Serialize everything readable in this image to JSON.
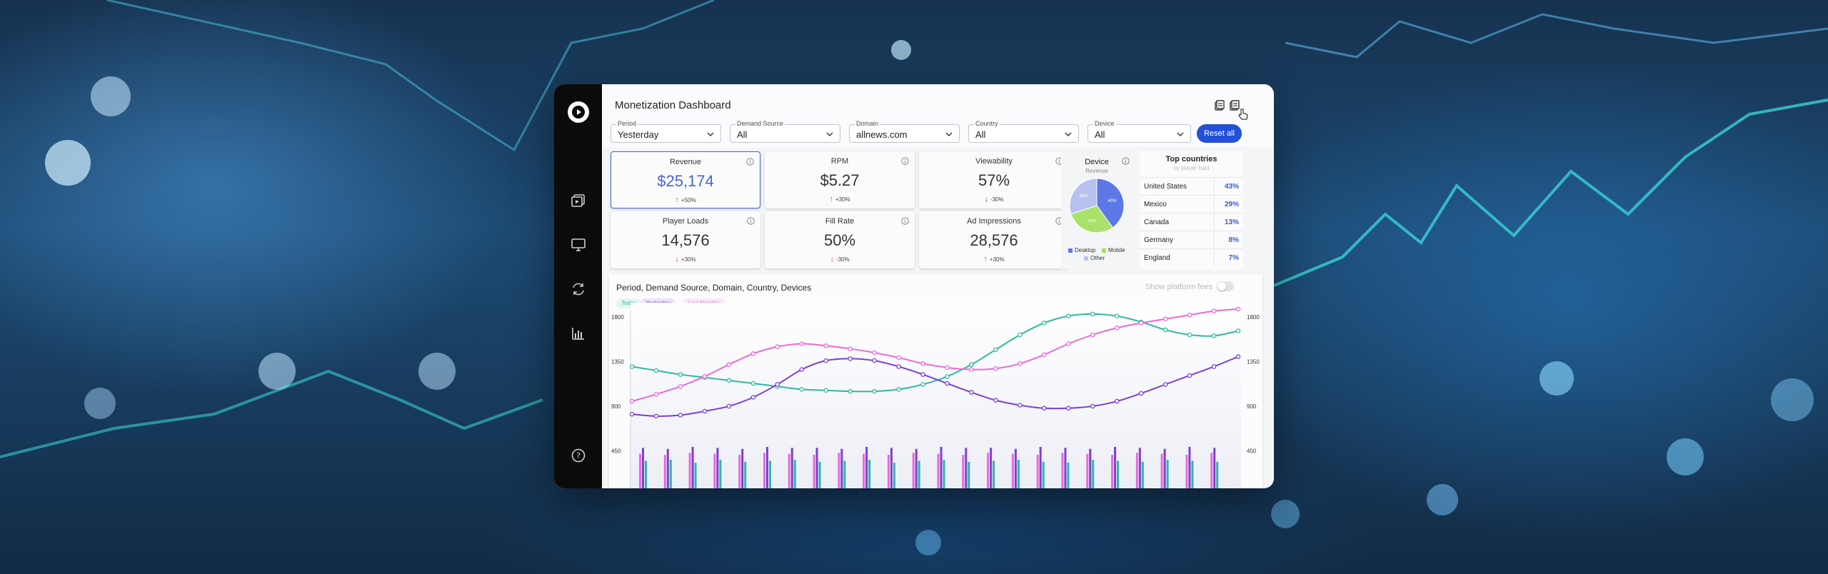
{
  "app": {
    "title": "Monetization Dashboard",
    "accent": "#2250d6"
  },
  "sidebar": {
    "items": [
      {
        "icon": "video-library-icon"
      },
      {
        "icon": "monitor-icon"
      },
      {
        "icon": "refresh-icon"
      },
      {
        "icon": "bar-chart-icon"
      },
      {
        "icon": "help-icon"
      }
    ]
  },
  "toolbar": {
    "icons": [
      "export-icon",
      "copy-icon"
    ]
  },
  "filters": {
    "period": {
      "label": "Period",
      "value": "Yesterday"
    },
    "demand_source": {
      "label": "Demand Source",
      "value": "All"
    },
    "domain": {
      "label": "Domain",
      "value": "allnews.com"
    },
    "country": {
      "label": "Country",
      "value": "All"
    },
    "device": {
      "label": "Device",
      "value": "All"
    },
    "reset_label": "Reset all"
  },
  "kpis": [
    {
      "title": "Revenue",
      "value": "$25,174",
      "change": "+50%",
      "direction": "up"
    },
    {
      "title": "RPM",
      "value": "$5.27",
      "change": "+30%",
      "direction": "up"
    },
    {
      "title": "Viewability",
      "value": "57%",
      "change": "-30%",
      "direction": "down"
    },
    {
      "title": "Player Loads",
      "value": "14,576",
      "change": "+30%",
      "direction": "down"
    },
    {
      "title": "Fill Rate",
      "value": "50%",
      "change": "-30%",
      "direction": "down"
    },
    {
      "title": "Ad Impressions",
      "value": "28,576",
      "change": "+30%",
      "direction": "up"
    }
  ],
  "device": {
    "title": "Device",
    "subtitle": "Revenue",
    "slices": [
      {
        "name": "Desktop",
        "percent": 40,
        "label": "40%",
        "color": "#5b78e6"
      },
      {
        "name": "Mobile",
        "percent": 30,
        "label": "30%",
        "color": "#a8e26a"
      },
      {
        "name": "Other",
        "percent": 30,
        "label": "30%",
        "color": "#b7c2ee"
      }
    ]
  },
  "top_countries": {
    "title": "Top countries",
    "subtitle": "by player load",
    "rows": [
      {
        "name": "United States",
        "pct": "43%"
      },
      {
        "name": "Mexico",
        "pct": "29%"
      },
      {
        "name": "Canada",
        "pct": "13%"
      },
      {
        "name": "Germany",
        "pct": "8%"
      },
      {
        "name": "England",
        "pct": "7%"
      }
    ]
  },
  "chart": {
    "title": "Period, Demand Source, Domain, Country, Devices",
    "toggle_label": "Show platform fees",
    "pills": [
      {
        "label": "Today",
        "color": "#2fb8a0",
        "bg": "#e3f6f2"
      },
      {
        "label": "Yesterday",
        "color": "#7b3fd8",
        "bg": "#ece3fa"
      },
      {
        "label": "Last Monday",
        "color": "#e96ad7",
        "bg": "#fbe6f7"
      }
    ]
  },
  "chart_data": {
    "type": "line",
    "yticks_left": [
      "1800",
      "1350",
      "900",
      "450"
    ],
    "yticks_right": [
      "1800",
      "1350",
      "900",
      "450"
    ],
    "ylim": [
      0,
      1800
    ],
    "series": [
      {
        "name": "Today",
        "color": "#2fb8a0",
        "values": [
          1300,
          1260,
          1220,
          1190,
          1160,
          1130,
          1100,
          1070,
          1060,
          1050,
          1050,
          1070,
          1120,
          1200,
          1320,
          1470,
          1620,
          1740,
          1810,
          1830,
          1810,
          1750,
          1670,
          1620,
          1610,
          1660
        ]
      },
      {
        "name": "Yesterday",
        "color": "#7b3fd8",
        "values": [
          820,
          800,
          810,
          850,
          900,
          990,
          1120,
          1270,
          1360,
          1380,
          1360,
          1300,
          1220,
          1130,
          1040,
          960,
          910,
          880,
          880,
          900,
          950,
          1030,
          1120,
          1210,
          1300,
          1400
        ]
      },
      {
        "name": "Last Monday",
        "color": "#e96ad7",
        "values": [
          950,
          1020,
          1100,
          1200,
          1320,
          1430,
          1500,
          1530,
          1510,
          1480,
          1440,
          1390,
          1330,
          1290,
          1270,
          1280,
          1330,
          1420,
          1530,
          1620,
          1690,
          1740,
          1780,
          1820,
          1860,
          1880
        ]
      }
    ],
    "bars": {
      "groups": 24,
      "series": [
        {
          "name": "Today",
          "color": "#2fb8a0",
          "values": [
            350,
            360,
            330,
            360,
            340,
            350,
            360,
            340,
            350,
            360,
            330,
            350,
            360,
            340,
            350,
            360,
            340,
            330,
            360,
            350,
            340,
            360,
            350,
            340
          ]
        },
        {
          "name": "Yesterday",
          "color": "#7b3fd8",
          "values": [
            480,
            470,
            490,
            480,
            470,
            490,
            480,
            480,
            470,
            490,
            480,
            470,
            490,
            480,
            480,
            470,
            490,
            480,
            470,
            490,
            480,
            470,
            490,
            480
          ]
        },
        {
          "name": "Last Monday",
          "color": "#e96ad7",
          "values": [
            420,
            410,
            430,
            420,
            410,
            430,
            420,
            410,
            430,
            420,
            410,
            430,
            420,
            410,
            430,
            420,
            410,
            430,
            420,
            410,
            430,
            420,
            410,
            430
          ]
        }
      ]
    }
  }
}
